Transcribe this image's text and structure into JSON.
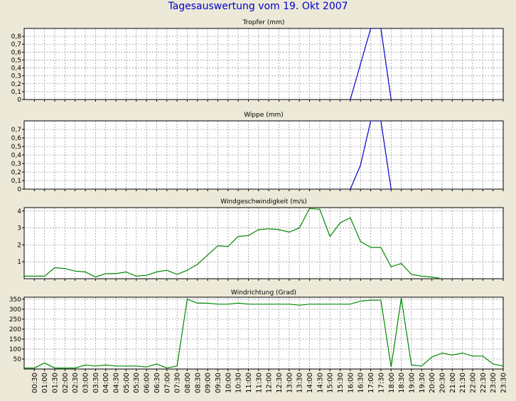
{
  "page": {
    "title": "Tagesauswertung vom 19. Okt 2007"
  },
  "x_labels": [
    "00:30",
    "01:00",
    "01:30",
    "02:00",
    "02:30",
    "03:00",
    "03:30",
    "04:00",
    "04:30",
    "05:00",
    "05:30",
    "06:00",
    "06:30",
    "07:00",
    "07:30",
    "08:00",
    "08:30",
    "09:00",
    "09:30",
    "10:00",
    "10:30",
    "11:00",
    "11:30",
    "12:00",
    "12:30",
    "13:00",
    "13:30",
    "14:00",
    "14:30",
    "15:00",
    "15:30",
    "16:00",
    "16:30",
    "17:00",
    "17:30",
    "18:00",
    "18:30",
    "19:00",
    "19:30",
    "20:00",
    "20:30",
    "21:00",
    "21:30",
    "22:00",
    "22:30",
    "23:00",
    "23:30"
  ],
  "chart_data": [
    {
      "type": "line",
      "title": "Tropfer (mm)",
      "color": "#0000cc",
      "ylim": [
        0,
        0.9
      ],
      "yticks": [
        0,
        0.1,
        0.2,
        0.3,
        0.4,
        0.5,
        0.6,
        0.7,
        0.8
      ],
      "ytick_labels": [
        "0",
        "0,1",
        "0,2",
        "0,3",
        "0,4",
        "0,5",
        "0,6",
        "0,7",
        "0,8"
      ],
      "points": [
        [
          "16:00",
          0
        ],
        [
          "17:00",
          0.9
        ],
        [
          "17:30",
          0.9
        ],
        [
          "18:00",
          0
        ]
      ]
    },
    {
      "type": "line",
      "title": "Wippe (mm)",
      "color": "#0000cc",
      "ylim": [
        0,
        0.8
      ],
      "yticks": [
        0,
        0.1,
        0.2,
        0.3,
        0.4,
        0.5,
        0.6,
        0.7
      ],
      "ytick_labels": [
        "0",
        "0,1",
        "0,2",
        "0,3",
        "0,4",
        "0,5",
        "0,6",
        "0,7"
      ],
      "points": [
        [
          "16:00",
          0
        ],
        [
          "16:30",
          0.28
        ],
        [
          "17:00",
          0.8
        ],
        [
          "17:30",
          0.8
        ],
        [
          "18:00",
          0
        ]
      ]
    },
    {
      "type": "line",
      "title": "Windgeschwindigkeit (m/s)",
      "color": "#008800",
      "ylim": [
        0,
        4.2
      ],
      "yticks": [
        1,
        2,
        3,
        4
      ],
      "ytick_labels": [
        "1",
        "2",
        "3",
        "4"
      ],
      "points": [
        [
          "00:00",
          0.15
        ],
        [
          "00:30",
          0.15
        ],
        [
          "01:00",
          0.15
        ],
        [
          "01:30",
          0.65
        ],
        [
          "02:00",
          0.6
        ],
        [
          "02:30",
          0.45
        ],
        [
          "03:00",
          0.4
        ],
        [
          "03:30",
          0.1
        ],
        [
          "04:00",
          0.3
        ],
        [
          "04:30",
          0.3
        ],
        [
          "05:00",
          0.4
        ],
        [
          "05:30",
          0.15
        ],
        [
          "06:00",
          0.2
        ],
        [
          "06:30",
          0.4
        ],
        [
          "07:00",
          0.5
        ],
        [
          "07:30",
          0.25
        ],
        [
          "08:00",
          0.5
        ],
        [
          "08:30",
          0.85
        ],
        [
          "09:00",
          1.4
        ],
        [
          "09:30",
          1.95
        ],
        [
          "10:00",
          1.9
        ],
        [
          "10:30",
          2.5
        ],
        [
          "11:00",
          2.55
        ],
        [
          "11:30",
          2.9
        ],
        [
          "12:00",
          2.95
        ],
        [
          "12:30",
          2.9
        ],
        [
          "13:00",
          2.75
        ],
        [
          "13:30",
          3.0
        ],
        [
          "14:00",
          4.15
        ],
        [
          "14:30",
          4.1
        ],
        [
          "15:00",
          2.5
        ],
        [
          "15:30",
          3.3
        ],
        [
          "16:00",
          3.6
        ],
        [
          "16:30",
          2.2
        ],
        [
          "17:00",
          1.85
        ],
        [
          "17:30",
          1.85
        ],
        [
          "18:00",
          0.7
        ],
        [
          "18:30",
          0.9
        ],
        [
          "19:00",
          0.25
        ],
        [
          "19:30",
          0.15
        ],
        [
          "20:00",
          0.1
        ],
        [
          "20:30",
          0.0
        ]
      ]
    },
    {
      "type": "line",
      "title": "Windrichtung (Grad)",
      "color": "#008800",
      "ylim": [
        0,
        360
      ],
      "yticks": [
        50,
        100,
        150,
        200,
        250,
        300,
        350
      ],
      "ytick_labels": [
        "50",
        "100",
        "150",
        "200",
        "250",
        "300",
        "350"
      ],
      "points": [
        [
          "00:00",
          5
        ],
        [
          "00:30",
          5
        ],
        [
          "01:00",
          30
        ],
        [
          "01:30",
          5
        ],
        [
          "02:00",
          5
        ],
        [
          "02:30",
          5
        ],
        [
          "03:00",
          20
        ],
        [
          "03:30",
          15
        ],
        [
          "04:00",
          20
        ],
        [
          "04:30",
          15
        ],
        [
          "05:00",
          15
        ],
        [
          "05:30",
          15
        ],
        [
          "06:00",
          10
        ],
        [
          "06:30",
          25
        ],
        [
          "07:00",
          5
        ],
        [
          "07:30",
          15
        ],
        [
          "08:00",
          350
        ],
        [
          "08:30",
          330
        ],
        [
          "09:00",
          330
        ],
        [
          "09:30",
          325
        ],
        [
          "10:00",
          325
        ],
        [
          "10:30",
          330
        ],
        [
          "11:00",
          325
        ],
        [
          "11:30",
          325
        ],
        [
          "12:00",
          325
        ],
        [
          "12:30",
          325
        ],
        [
          "13:00",
          325
        ],
        [
          "13:30",
          320
        ],
        [
          "14:00",
          325
        ],
        [
          "14:30",
          325
        ],
        [
          "15:00",
          325
        ],
        [
          "15:30",
          325
        ],
        [
          "16:00",
          325
        ],
        [
          "16:30",
          340
        ],
        [
          "17:00",
          345
        ],
        [
          "17:30",
          345
        ],
        [
          "18:00",
          10
        ],
        [
          "18:30",
          355
        ],
        [
          "19:00",
          20
        ],
        [
          "19:30",
          15
        ],
        [
          "20:00",
          60
        ],
        [
          "20:30",
          80
        ],
        [
          "21:00",
          70
        ],
        [
          "21:30",
          80
        ],
        [
          "22:00",
          65
        ],
        [
          "22:30",
          65
        ],
        [
          "23:00",
          25
        ],
        [
          "23:30",
          15
        ]
      ]
    }
  ]
}
